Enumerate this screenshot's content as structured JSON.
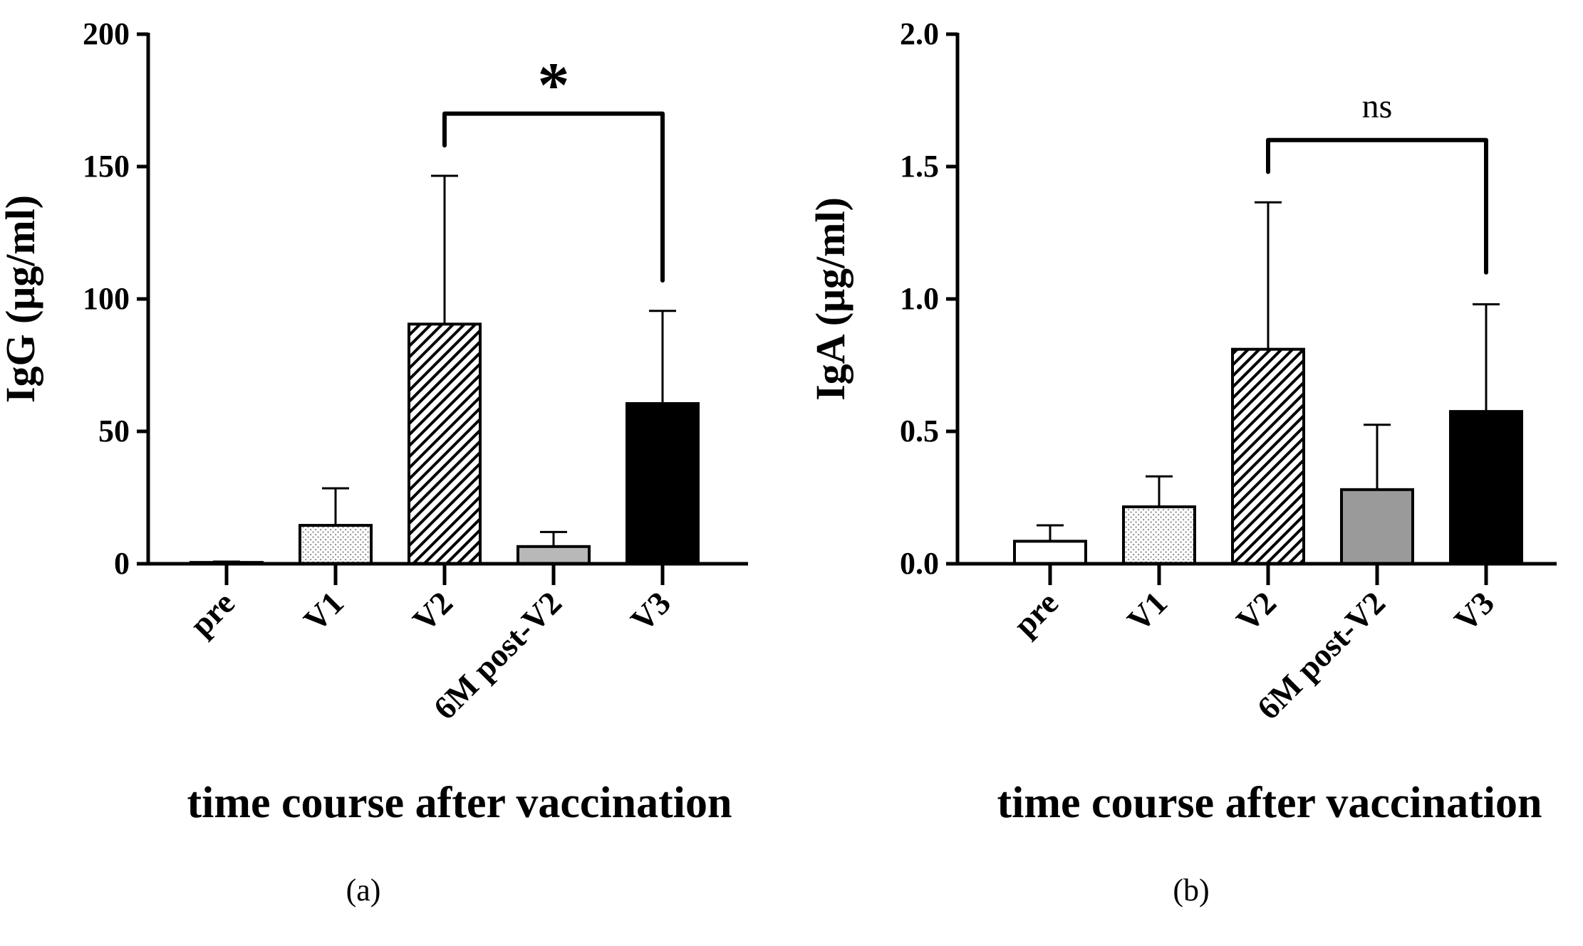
{
  "chart_data": [
    {
      "type": "bar",
      "panel_label": "(a)",
      "categories": [
        "pre",
        "V1",
        "V2",
        "6M post-V2",
        "V3"
      ],
      "values": [
        0.5,
        14.5,
        90.5,
        6.5,
        60.5
      ],
      "error_upper": [
        0.8,
        28.5,
        146.5,
        12.0,
        95.5
      ],
      "ylabel": "IgG (μg/ml)",
      "xlabel": "time course after vaccination",
      "ylim": [
        0,
        200
      ],
      "yticks": [
        "0",
        "50",
        "100",
        "150",
        "200"
      ],
      "ytick_values": [
        0,
        50,
        100,
        150,
        200
      ],
      "bar_styles": [
        "white",
        "dots",
        "hatch",
        "lightgray",
        "black"
      ],
      "comparison": {
        "from": "V2",
        "to": "V3",
        "label": "*",
        "bracket_y": 170,
        "left_arm_y": 158,
        "right_arm_y": 107
      }
    },
    {
      "type": "bar",
      "panel_label": "(b)",
      "categories": [
        "pre",
        "V1",
        "V2",
        "6M post-V2",
        "V3"
      ],
      "values": [
        0.085,
        0.215,
        0.81,
        0.28,
        0.575
      ],
      "error_upper": [
        0.145,
        0.33,
        1.365,
        0.525,
        0.98
      ],
      "ylabel": "IgA (μg/ml)",
      "xlabel": "time course after vaccination",
      "ylim": [
        0,
        2.0
      ],
      "yticks": [
        "0.0",
        "0.5",
        "1.0",
        "1.5",
        "2.0"
      ],
      "ytick_values": [
        0,
        0.5,
        1.0,
        1.5,
        2.0
      ],
      "bar_styles": [
        "white",
        "dots",
        "hatch",
        "gray",
        "black"
      ],
      "comparison": {
        "from": "V2",
        "to": "V3",
        "label": "ns",
        "bracket_y": 1.6,
        "left_arm_y": 1.48,
        "right_arm_y": 1.1
      }
    }
  ],
  "colors": {
    "axis": "#000000",
    "lightgray": "#b8b8b8",
    "gray": "#9a9a9a",
    "black": "#000000",
    "white": "#ffffff"
  }
}
